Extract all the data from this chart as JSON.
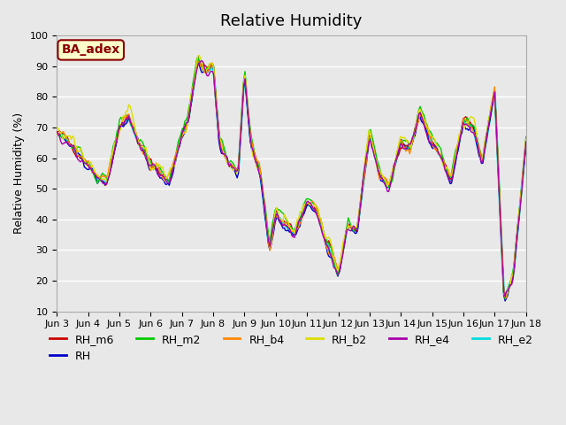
{
  "title": "Relative Humidity",
  "ylabel": "Relative Humidity (%)",
  "xlabel": "",
  "ylim": [
    10,
    100
  ],
  "plot_bg_color": "#e8e8e8",
  "annotation_text": "BA_adex",
  "annotation_bg": "#ffffcc",
  "annotation_border": "#8b0000",
  "series": {
    "RH_m6": {
      "color": "#cc0000",
      "lw": 1.0,
      "zorder": 5
    },
    "RH": {
      "color": "#0000cc",
      "lw": 1.0,
      "zorder": 5
    },
    "RH_m2": {
      "color": "#00cc00",
      "lw": 1.0,
      "zorder": 5
    },
    "RH_b4": {
      "color": "#ff8800",
      "lw": 1.0,
      "zorder": 5
    },
    "RH_b2": {
      "color": "#dddd00",
      "lw": 1.0,
      "zorder": 5
    },
    "RH_e4": {
      "color": "#aa00aa",
      "lw": 1.0,
      "zorder": 5
    },
    "RH_e2": {
      "color": "#00dddd",
      "lw": 1.8,
      "zorder": 4
    }
  },
  "xtick_labels": [
    "Jun 3",
    "Jun 4",
    "Jun 5",
    "Jun 6",
    "Jun 7",
    "Jun 8",
    "Jun 9",
    "Jun 10",
    "Jun 11",
    "Jun 12",
    "Jun 13",
    "Jun 14",
    "Jun 15",
    "Jun 16",
    "Jun 17",
    "Jun 18"
  ],
  "ytick_values": [
    10,
    20,
    30,
    40,
    50,
    60,
    70,
    80,
    90,
    100
  ],
  "grid_color": "#ffffff",
  "title_fontsize": 13,
  "tick_fontsize": 8,
  "legend_fontsize": 9,
  "envelope_t": [
    0,
    0.3,
    0.6,
    1.0,
    1.3,
    1.6,
    2.0,
    2.3,
    2.6,
    3.0,
    3.3,
    3.6,
    4.0,
    4.2,
    4.5,
    4.8,
    5.0,
    5.2,
    5.5,
    5.8,
    6.0,
    6.2,
    6.5,
    6.8,
    7.0,
    7.3,
    7.6,
    8.0,
    8.3,
    8.6,
    9.0,
    9.3,
    9.6,
    10.0,
    10.3,
    10.6,
    11.0,
    11.3,
    11.6,
    12.0,
    12.3,
    12.6,
    13.0,
    13.3,
    13.6,
    14.0,
    14.3,
    14.6,
    15.0
  ],
  "base_rh": [
    68,
    66,
    62,
    58,
    53,
    52,
    70,
    73,
    65,
    58,
    55,
    52,
    68,
    72,
    92,
    88,
    90,
    65,
    58,
    55,
    88,
    65,
    55,
    30,
    42,
    38,
    35,
    45,
    43,
    33,
    22,
    38,
    36,
    68,
    55,
    50,
    65,
    63,
    75,
    65,
    60,
    52,
    72,
    70,
    58,
    82,
    14,
    22,
    65
  ]
}
